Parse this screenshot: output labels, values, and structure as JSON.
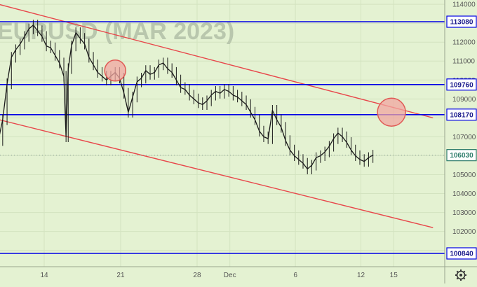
{
  "chart_data": {
    "type": "line",
    "title": "",
    "watermark": "EURUSD (MAR 2023)",
    "ylim": [
      100500,
      114200
    ],
    "y_ticks": [
      114000,
      113000,
      112000,
      111000,
      110000,
      109000,
      108000,
      107000,
      106000,
      105000,
      104000,
      103000,
      102000,
      101000
    ],
    "x_day_range": [
      8.3,
      19.6
    ],
    "x_ticks": [
      {
        "label": "14",
        "day": 14
      },
      {
        "label": "21",
        "day": 21
      },
      {
        "label": "28",
        "day": 28
      },
      {
        "label": "Dec",
        "day": 31
      },
      {
        "label": "6",
        "day": 37
      },
      {
        "label": "12",
        "day": 43
      },
      {
        "label": "15",
        "day": 46
      }
    ],
    "levels": [
      {
        "label": "113080",
        "value": 113080
      },
      {
        "label": "109760",
        "value": 109760
      },
      {
        "label": "108170",
        "value": 108170
      },
      {
        "label": "100840",
        "value": 100840
      }
    ],
    "last_price": {
      "label": "106030",
      "value": 106030
    },
    "channel_lines": [
      {
        "from": [
          8.5,
          114200
        ],
        "to": [
          49.6,
          108000
        ]
      },
      {
        "from": [
          8.5,
          108100
        ],
        "to": [
          49.6,
          102200
        ]
      }
    ],
    "highlight_circles": [
      {
        "day": 20.5,
        "value": 110500
      },
      {
        "day": 45.8,
        "value": 108300
      }
    ],
    "series": [
      {
        "x": [
          8.3,
          8.6,
          9.0,
          9.4,
          9.8,
          10.2,
          10.6,
          11.0,
          11.4,
          11.8,
          12.2,
          12.6,
          13.0,
          13.4,
          13.8,
          14.2,
          14.6,
          15.0,
          15.4,
          15.8,
          16.0,
          16.2,
          16.5,
          16.9,
          17.3,
          17.7,
          18.1,
          18.5,
          18.9,
          19.3,
          19.7,
          20.1,
          20.5,
          20.9,
          21.3,
          21.7,
          22.1,
          22.5,
          22.9,
          23.3,
          23.7,
          24.1,
          24.5,
          24.9,
          25.3,
          25.7,
          26.1,
          26.5,
          26.9,
          27.3,
          27.7,
          28.1,
          28.5,
          28.9,
          29.3,
          29.7,
          30.1,
          30.5,
          30.9,
          31.3,
          31.7,
          32.1,
          32.5,
          32.9,
          33.3,
          33.7,
          34.1,
          34.5,
          34.9,
          35.3,
          35.7,
          36.1,
          36.5,
          36.9,
          37.3,
          37.7,
          38.1,
          38.5,
          38.9,
          39.3,
          39.7,
          40.1,
          40.5,
          40.9,
          41.3,
          41.7,
          42.1,
          42.5,
          42.9,
          43.3,
          43.7,
          44.1
        ],
        "values": [
          110300,
          109900,
          108800,
          107600,
          106800,
          107900,
          109800,
          111200,
          111600,
          111900,
          112300,
          112700,
          112900,
          112600,
          112300,
          111800,
          111700,
          111300,
          110900,
          110200,
          107000,
          110600,
          111800,
          112500,
          112200,
          111900,
          111200,
          110800,
          110400,
          110200,
          110000,
          110200,
          110400,
          110100,
          109300,
          108300,
          109100,
          109900,
          110100,
          110500,
          110300,
          110400,
          110800,
          110900,
          110600,
          110400,
          110000,
          109600,
          109500,
          109200,
          109000,
          108800,
          108700,
          108900,
          109200,
          109400,
          109300,
          109500,
          109400,
          109200,
          109100,
          108900,
          108700,
          108300,
          107900,
          107300,
          107000,
          106900,
          108400,
          107900,
          107500,
          106800,
          106300,
          106000,
          105800,
          105600,
          105300,
          105500,
          105900,
          106000,
          106200,
          106500,
          106900,
          107200,
          107000,
          106700,
          106300,
          106000,
          105800,
          105700,
          105900,
          106030
        ]
      }
    ]
  },
  "axis": {
    "settings_icon": "gear-icon"
  },
  "colors": {
    "background": "#e4f2d2",
    "level_line": "#0000e6",
    "channel_line": "#e8474b",
    "price_line": "#1a1a1a",
    "circle_fill": "#f2a6a0",
    "circle_stroke": "#e05a55"
  }
}
